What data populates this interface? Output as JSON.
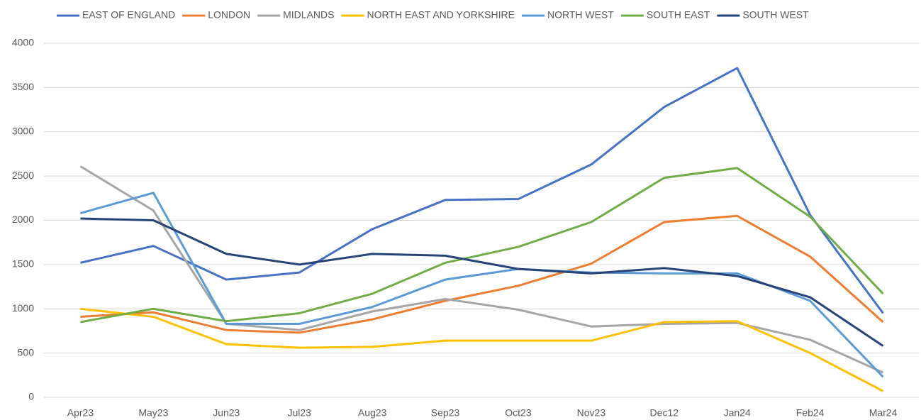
{
  "chart_data": {
    "type": "line",
    "categories": [
      "Apr23",
      "May23",
      "Jun23",
      "Jul23",
      "Aug23",
      "Sep23",
      "Oct23",
      "Nov23",
      "Dec12",
      "Jan24",
      "Feb24",
      "Mar24"
    ],
    "series": [
      {
        "name": "EAST OF ENGLAND",
        "color": "#4472c4",
        "values": [
          1520,
          1710,
          1330,
          1410,
          1900,
          2230,
          2240,
          2630,
          3280,
          3720,
          2060,
          950
        ]
      },
      {
        "name": "LONDON",
        "color": "#ed7d31",
        "values": [
          910,
          960,
          760,
          730,
          880,
          1090,
          1260,
          1510,
          1980,
          2050,
          1590,
          850
        ]
      },
      {
        "name": "MIDLANDS",
        "color": "#a5a5a5",
        "values": [
          2610,
          2110,
          830,
          760,
          970,
          1110,
          990,
          800,
          830,
          840,
          650,
          280
        ]
      },
      {
        "name": "NORTH EAST AND YORKSHIRE",
        "color": "#ffc000",
        "values": [
          1000,
          910,
          600,
          560,
          570,
          640,
          640,
          640,
          850,
          860,
          500,
          70
        ]
      },
      {
        "name": "NORTH WEST",
        "color": "#5b9bd5",
        "values": [
          2080,
          2310,
          830,
          830,
          1020,
          1330,
          1450,
          1410,
          1400,
          1400,
          1090,
          230
        ]
      },
      {
        "name": "SOUTH EAST",
        "color": "#70ad47",
        "values": [
          850,
          1000,
          860,
          950,
          1170,
          1520,
          1700,
          1980,
          2480,
          2590,
          2040,
          1170
        ]
      },
      {
        "name": "SOUTH WEST",
        "color": "#264478",
        "values": [
          2020,
          2000,
          1620,
          1500,
          1620,
          1600,
          1450,
          1400,
          1460,
          1370,
          1130,
          580
        ]
      }
    ],
    "ylim": [
      0,
      4000
    ],
    "yticks": [
      0,
      500,
      1000,
      1500,
      2000,
      2500,
      3000,
      3500,
      4000
    ],
    "grid": true,
    "legend": "top"
  }
}
